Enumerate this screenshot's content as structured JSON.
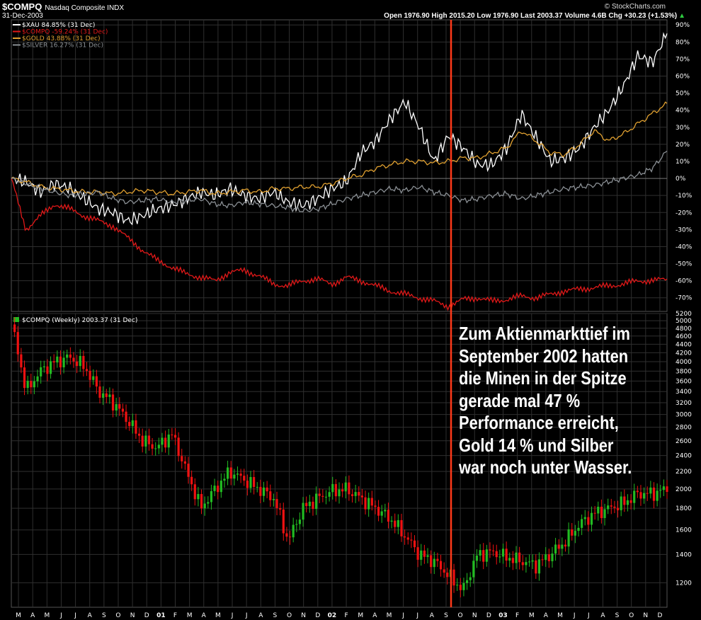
{
  "header": {
    "symbol": "$COMPQ",
    "name": "Nasdaq Composite INDX",
    "date": "31-Dec-2003",
    "brand": "© StockCharts.com",
    "quote": "Open 1976.90  High 2015.20  Low 1976.90  Last 2003.37  Volume 4.6B  Chg +30.23 (+1.53%)",
    "quote_arrow": "▲"
  },
  "annotation": {
    "lines": [
      "Zum Aktienmarkttief im",
      "September 2002 hatten",
      "die Minen in der Spitze",
      "gerade mal 47 %",
      "Performance erreicht,",
      "Gold 14 % und Silber",
      "war noch unter Wasser."
    ]
  },
  "colors": {
    "background": "#000000",
    "grid": "#2f2f2f",
    "xau": "#ffffff",
    "compq": "#e01818",
    "gold": "#e0a030",
    "silver": "#8a8f94",
    "marker": "#ff3a1a",
    "candle_up": "#22bb22",
    "candle_down": "#ee1111"
  },
  "chart_data": [
    {
      "type": "line",
      "panel": "performance",
      "x_labels": [
        "M",
        "A",
        "M",
        "J",
        "J",
        "A",
        "S",
        "O",
        "N",
        "D",
        "01",
        "F",
        "M",
        "A",
        "M",
        "J",
        "J",
        "A",
        "S",
        "O",
        "N",
        "D",
        "02",
        "F",
        "M",
        "A",
        "M",
        "J",
        "J",
        "A",
        "S",
        "O",
        "N",
        "D",
        "03",
        "F",
        "M",
        "A",
        "M",
        "J",
        "J",
        "A",
        "S",
        "O",
        "N",
        "D"
      ],
      "y_ticks": [
        "90%",
        "80%",
        "70%",
        "60%",
        "50%",
        "40%",
        "30%",
        "20%",
        "10%",
        "0%",
        "-10%",
        "-20%",
        "-30%",
        "-40%",
        "-50%",
        "-60%",
        "-70%"
      ],
      "ylim": [
        -78,
        93
      ],
      "grid": true,
      "legend_position": "top-left",
      "series": [
        {
          "name": "$XAU 84.85% (31 Dec)",
          "color": "#ffffff",
          "points": [
            [
              0,
              0
            ],
            [
              1,
              -2
            ],
            [
              2,
              -8
            ],
            [
              3,
              -3
            ],
            [
              4,
              -6
            ],
            [
              5,
              -12
            ],
            [
              6,
              -18
            ],
            [
              7,
              -20
            ],
            [
              8,
              -25
            ],
            [
              9,
              -22
            ],
            [
              10,
              -18
            ],
            [
              11,
              -16
            ],
            [
              12,
              -12
            ],
            [
              13,
              -8
            ],
            [
              14,
              -10
            ],
            [
              15,
              -6
            ],
            [
              16,
              -10
            ],
            [
              17,
              -12
            ],
            [
              18,
              -8
            ],
            [
              19,
              -14
            ],
            [
              20,
              -16
            ],
            [
              21,
              -12
            ],
            [
              22,
              -6
            ],
            [
              23,
              -2
            ],
            [
              24,
              15
            ],
            [
              25,
              22
            ],
            [
              26,
              35
            ],
            [
              27,
              45
            ],
            [
              28,
              30
            ],
            [
              29,
              10
            ],
            [
              30,
              25
            ],
            [
              31,
              18
            ],
            [
              32,
              8
            ],
            [
              33,
              8
            ],
            [
              34,
              18
            ],
            [
              35,
              38
            ],
            [
              36,
              24
            ],
            [
              37,
              10
            ],
            [
              38,
              12
            ],
            [
              39,
              18
            ],
            [
              40,
              30
            ],
            [
              41,
              40
            ],
            [
              42,
              54
            ],
            [
              43,
              72
            ],
            [
              44,
              68
            ],
            [
              45,
              85
            ]
          ]
        },
        {
          "name": "$COMPQ -59.24% (31 Dec)",
          "color": "#e01818",
          "points": [
            [
              0,
              0
            ],
            [
              1,
              -30
            ],
            [
              2,
              -22
            ],
            [
              3,
              -15
            ],
            [
              4,
              -18
            ],
            [
              5,
              -22
            ],
            [
              6,
              -25
            ],
            [
              7,
              -28
            ],
            [
              8,
              -35
            ],
            [
              9,
              -42
            ],
            [
              10,
              -48
            ],
            [
              11,
              -52
            ],
            [
              12,
              -56
            ],
            [
              13,
              -58
            ],
            [
              14,
              -60
            ],
            [
              15,
              -55
            ],
            [
              16,
              -54
            ],
            [
              17,
              -57
            ],
            [
              18,
              -62
            ],
            [
              19,
              -63
            ],
            [
              20,
              -60
            ],
            [
              21,
              -59
            ],
            [
              22,
              -62
            ],
            [
              23,
              -58
            ],
            [
              24,
              -60
            ],
            [
              25,
              -63
            ],
            [
              26,
              -66
            ],
            [
              27,
              -68
            ],
            [
              28,
              -70
            ],
            [
              29,
              -72
            ],
            [
              30,
              -75
            ],
            [
              31,
              -71
            ],
            [
              32,
              -70
            ],
            [
              33,
              -72
            ],
            [
              34,
              -71
            ],
            [
              35,
              -69
            ],
            [
              36,
              -70
            ],
            [
              37,
              -68
            ],
            [
              38,
              -66
            ],
            [
              39,
              -65
            ],
            [
              40,
              -64
            ],
            [
              41,
              -63
            ],
            [
              42,
              -62
            ],
            [
              43,
              -60
            ],
            [
              44,
              -60
            ],
            [
              45,
              -59
            ]
          ]
        },
        {
          "name": "$GOLD 43.88% (31 Dec)",
          "color": "#e0a030",
          "points": [
            [
              0,
              0
            ],
            [
              1,
              -2
            ],
            [
              2,
              -5
            ],
            [
              3,
              -6
            ],
            [
              4,
              -7
            ],
            [
              5,
              -8
            ],
            [
              6,
              -8
            ],
            [
              7,
              -9
            ],
            [
              8,
              -8
            ],
            [
              9,
              -7
            ],
            [
              10,
              -8
            ],
            [
              11,
              -9
            ],
            [
              12,
              -8
            ],
            [
              13,
              -7
            ],
            [
              14,
              -9
            ],
            [
              15,
              -8
            ],
            [
              16,
              -7
            ],
            [
              17,
              -8
            ],
            [
              18,
              -6
            ],
            [
              19,
              -6
            ],
            [
              20,
              -5
            ],
            [
              21,
              -5
            ],
            [
              22,
              -3
            ],
            [
              23,
              0
            ],
            [
              24,
              2
            ],
            [
              25,
              6
            ],
            [
              26,
              8
            ],
            [
              27,
              10
            ],
            [
              28,
              10
            ],
            [
              29,
              9
            ],
            [
              30,
              10
            ],
            [
              31,
              12
            ],
            [
              32,
              12
            ],
            [
              33,
              15
            ],
            [
              34,
              18
            ],
            [
              35,
              28
            ],
            [
              36,
              22
            ],
            [
              37,
              15
            ],
            [
              38,
              14
            ],
            [
              39,
              20
            ],
            [
              40,
              28
            ],
            [
              41,
              22
            ],
            [
              42,
              26
            ],
            [
              43,
              32
            ],
            [
              44,
              38
            ],
            [
              45,
              44
            ]
          ]
        },
        {
          "name": "$SILVER 16.27% (31 Dec)",
          "color": "#8a8f94",
          "points": [
            [
              0,
              0
            ],
            [
              1,
              -3
            ],
            [
              2,
              -6
            ],
            [
              3,
              -8
            ],
            [
              4,
              -10
            ],
            [
              5,
              -9
            ],
            [
              6,
              -8
            ],
            [
              7,
              -12
            ],
            [
              8,
              -14
            ],
            [
              9,
              -13
            ],
            [
              10,
              -12
            ],
            [
              11,
              -14
            ],
            [
              12,
              -13
            ],
            [
              13,
              -12
            ],
            [
              14,
              -15
            ],
            [
              15,
              -16
            ],
            [
              16,
              -14
            ],
            [
              17,
              -15
            ],
            [
              18,
              -16
            ],
            [
              19,
              -17
            ],
            [
              20,
              -19
            ],
            [
              21,
              -18
            ],
            [
              22,
              -15
            ],
            [
              23,
              -12
            ],
            [
              24,
              -10
            ],
            [
              25,
              -8
            ],
            [
              26,
              -6
            ],
            [
              27,
              -7
            ],
            [
              28,
              -5
            ],
            [
              29,
              -8
            ],
            [
              30,
              -10
            ],
            [
              31,
              -13
            ],
            [
              32,
              -12
            ],
            [
              33,
              -10
            ],
            [
              34,
              -9
            ],
            [
              35,
              -12
            ],
            [
              36,
              -10
            ],
            [
              37,
              -8
            ],
            [
              38,
              -6
            ],
            [
              39,
              -5
            ],
            [
              40,
              -4
            ],
            [
              41,
              -2
            ],
            [
              42,
              0
            ],
            [
              43,
              2
            ],
            [
              44,
              6
            ],
            [
              45,
              16
            ]
          ]
        }
      ]
    },
    {
      "type": "candlestick",
      "panel": "price",
      "title": "$COMPQ (Weekly) 2003.37 (31 Dec)",
      "y_ticks": [
        "5200",
        "5000",
        "4800",
        "4600",
        "4400",
        "4200",
        "4000",
        "3800",
        "3600",
        "3400",
        "3200",
        "3000",
        "2800",
        "2600",
        "2400",
        "2200",
        "2000",
        "1800",
        "1600",
        "1400",
        "1200"
      ],
      "ylim": [
        1050,
        5200
      ],
      "log_scale": true,
      "grid": true,
      "close_path": [
        [
          0,
          4900
        ],
        [
          1,
          3400
        ],
        [
          2,
          3800
        ],
        [
          3,
          4000
        ],
        [
          4,
          4100
        ],
        [
          5,
          3900
        ],
        [
          6,
          3400
        ],
        [
          7,
          3200
        ],
        [
          8,
          2900
        ],
        [
          9,
          2600
        ],
        [
          10,
          2500
        ],
        [
          11,
          2700
        ],
        [
          12,
          2200
        ],
        [
          13,
          1800
        ],
        [
          14,
          2000
        ],
        [
          15,
          2200
        ],
        [
          16,
          2100
        ],
        [
          17,
          2000
        ],
        [
          18,
          1900
        ],
        [
          19,
          1500
        ],
        [
          20,
          1800
        ],
        [
          21,
          1900
        ],
        [
          22,
          1980
        ],
        [
          23,
          2000
        ],
        [
          24,
          1900
        ],
        [
          25,
          1800
        ],
        [
          26,
          1700
        ],
        [
          27,
          1550
        ],
        [
          28,
          1400
        ],
        [
          29,
          1350
        ],
        [
          30,
          1250
        ],
        [
          31,
          1150
        ],
        [
          32,
          1400
        ],
        [
          33,
          1420
        ],
        [
          34,
          1380
        ],
        [
          35,
          1350
        ],
        [
          36,
          1320
        ],
        [
          37,
          1400
        ],
        [
          38,
          1500
        ],
        [
          39,
          1650
        ],
        [
          40,
          1750
        ],
        [
          41,
          1800
        ],
        [
          42,
          1850
        ],
        [
          43,
          1950
        ],
        [
          44,
          1950
        ],
        [
          45,
          2003
        ]
      ]
    }
  ]
}
